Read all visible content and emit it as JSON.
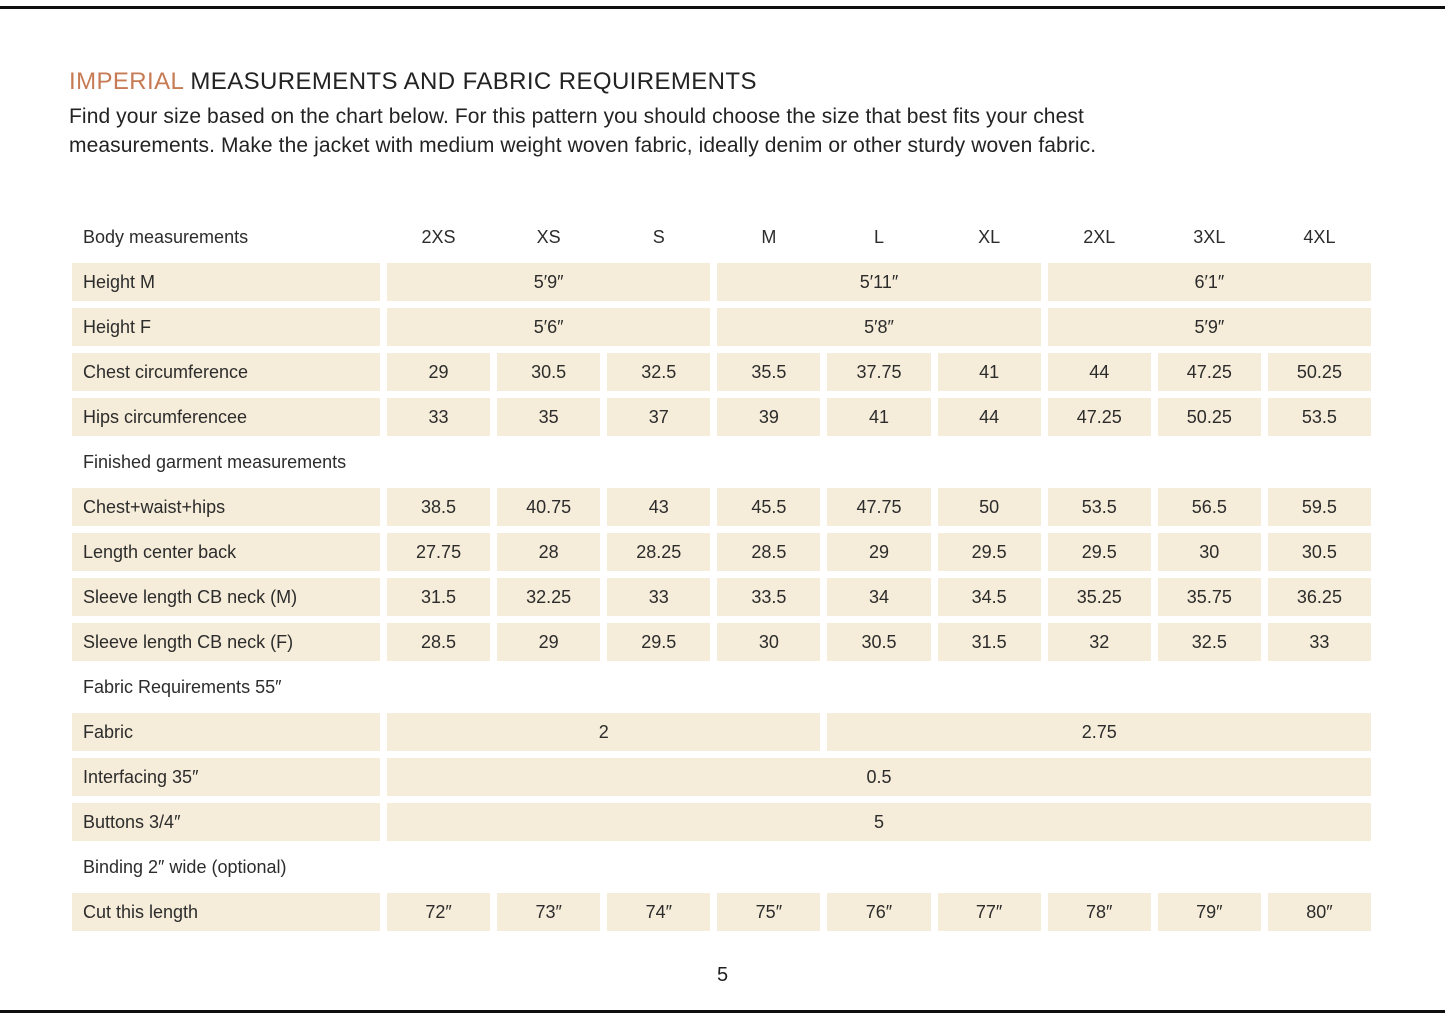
{
  "colors": {
    "accent": "#c77b54",
    "cell_background": "#f5ecd9",
    "text": "#2c2c2c",
    "rule": "#0e0e0e"
  },
  "header": {
    "title_accent": "IMPERIAL",
    "title_rest": " MEASUREMENTS AND FABRIC REQUIREMENTS",
    "intro_line1": "Find your size based on the chart below. For this pattern you should choose the size that best fits your chest",
    "intro_line2": "measurements. Make the jacket with medium weight woven fabric, ideally denim or other sturdy woven fabric."
  },
  "table": {
    "sizes": [
      "2XS",
      "XS",
      "S",
      "M",
      "L",
      "XL",
      "2XL",
      "3XL",
      "4XL"
    ],
    "rows": [
      {
        "type": "header",
        "label": "Body measurements"
      },
      {
        "type": "span",
        "label": "Height M",
        "spans": [
          {
            "cols": 3,
            "value": "5′9″"
          },
          {
            "cols": 3,
            "value": "5′11″"
          },
          {
            "cols": 3,
            "value": "6′1″"
          }
        ]
      },
      {
        "type": "span",
        "label": "Height F",
        "spans": [
          {
            "cols": 3,
            "value": "5′6″"
          },
          {
            "cols": 3,
            "value": "5′8″"
          },
          {
            "cols": 3,
            "value": "5′9″"
          }
        ]
      },
      {
        "type": "cells",
        "label": "Chest circumference",
        "values": [
          "29",
          "30.5",
          "32.5",
          "35.5",
          "37.75",
          "41",
          "44",
          "47.25",
          "50.25"
        ]
      },
      {
        "type": "cells",
        "label": "Hips circumferencee",
        "values": [
          "33",
          "35",
          "37",
          "39",
          "41",
          "44",
          "47.25",
          "50.25",
          "53.5"
        ]
      },
      {
        "type": "section",
        "label": "Finished garment measurements"
      },
      {
        "type": "cells",
        "label": "Chest+waist+hips",
        "values": [
          "38.5",
          "40.75",
          "43",
          "45.5",
          "47.75",
          "50",
          "53.5",
          "56.5",
          "59.5"
        ]
      },
      {
        "type": "cells",
        "label": "Length center back",
        "values": [
          "27.75",
          "28",
          "28.25",
          "28.5",
          "29",
          "29.5",
          "29.5",
          "30",
          "30.5"
        ]
      },
      {
        "type": "cells",
        "label": "Sleeve length CB neck (M)",
        "values": [
          "31.5",
          "32.25",
          "33",
          "33.5",
          "34",
          "34.5",
          "35.25",
          "35.75",
          "36.25"
        ]
      },
      {
        "type": "cells",
        "label": "Sleeve length CB neck (F)",
        "values": [
          "28.5",
          "29",
          "29.5",
          "30",
          "30.5",
          "31.5",
          "32",
          "32.5",
          "33"
        ]
      },
      {
        "type": "section",
        "label": "Fabric Requirements 55″"
      },
      {
        "type": "span",
        "label": "Fabric",
        "spans": [
          {
            "cols": 4,
            "value": "2"
          },
          {
            "cols": 5,
            "value": "2.75"
          }
        ]
      },
      {
        "type": "span",
        "label": "Interfacing 35″",
        "spans": [
          {
            "cols": 9,
            "value": "0.5"
          }
        ]
      },
      {
        "type": "span",
        "label": "Buttons 3/4″",
        "spans": [
          {
            "cols": 9,
            "value": "5"
          }
        ]
      },
      {
        "type": "section",
        "label": "Binding 2″ wide (optional)"
      },
      {
        "type": "cells",
        "label": "Cut this length",
        "values": [
          "72″",
          "73″",
          "74″",
          "75″",
          "76″",
          "77″",
          "78″",
          "79″",
          "80″"
        ]
      }
    ]
  },
  "footer": {
    "page_number": "5"
  }
}
